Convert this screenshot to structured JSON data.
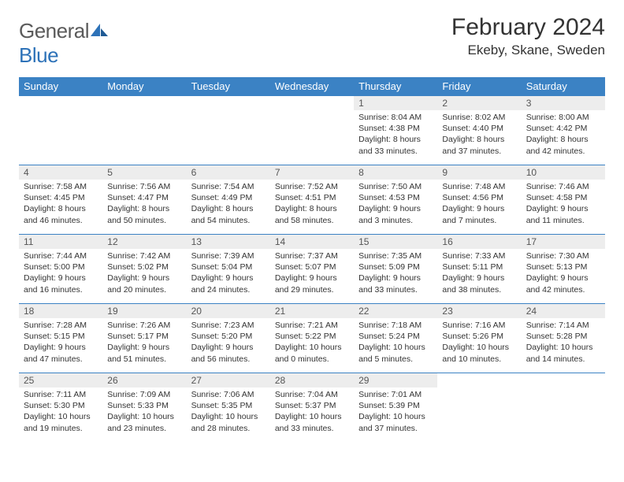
{
  "brand": {
    "name1": "General",
    "name2": "Blue"
  },
  "title": "February 2024",
  "location": "Ekeby, Skane, Sweden",
  "colors": {
    "header_bg": "#3b82c4",
    "header_text": "#ffffff",
    "daynum_bg": "#ededed",
    "row_border": "#3b82c4",
    "logo_gray": "#5a5a5a",
    "logo_blue": "#2d72b8"
  },
  "weekdays": [
    "Sunday",
    "Monday",
    "Tuesday",
    "Wednesday",
    "Thursday",
    "Friday",
    "Saturday"
  ],
  "weeks": [
    [
      null,
      null,
      null,
      null,
      {
        "n": "1",
        "sr": "8:04 AM",
        "ss": "4:38 PM",
        "dl": "8 hours and 33 minutes."
      },
      {
        "n": "2",
        "sr": "8:02 AM",
        "ss": "4:40 PM",
        "dl": "8 hours and 37 minutes."
      },
      {
        "n": "3",
        "sr": "8:00 AM",
        "ss": "4:42 PM",
        "dl": "8 hours and 42 minutes."
      }
    ],
    [
      {
        "n": "4",
        "sr": "7:58 AM",
        "ss": "4:45 PM",
        "dl": "8 hours and 46 minutes."
      },
      {
        "n": "5",
        "sr": "7:56 AM",
        "ss": "4:47 PM",
        "dl": "8 hours and 50 minutes."
      },
      {
        "n": "6",
        "sr": "7:54 AM",
        "ss": "4:49 PM",
        "dl": "8 hours and 54 minutes."
      },
      {
        "n": "7",
        "sr": "7:52 AM",
        "ss": "4:51 PM",
        "dl": "8 hours and 58 minutes."
      },
      {
        "n": "8",
        "sr": "7:50 AM",
        "ss": "4:53 PM",
        "dl": "9 hours and 3 minutes."
      },
      {
        "n": "9",
        "sr": "7:48 AM",
        "ss": "4:56 PM",
        "dl": "9 hours and 7 minutes."
      },
      {
        "n": "10",
        "sr": "7:46 AM",
        "ss": "4:58 PM",
        "dl": "9 hours and 11 minutes."
      }
    ],
    [
      {
        "n": "11",
        "sr": "7:44 AM",
        "ss": "5:00 PM",
        "dl": "9 hours and 16 minutes."
      },
      {
        "n": "12",
        "sr": "7:42 AM",
        "ss": "5:02 PM",
        "dl": "9 hours and 20 minutes."
      },
      {
        "n": "13",
        "sr": "7:39 AM",
        "ss": "5:04 PM",
        "dl": "9 hours and 24 minutes."
      },
      {
        "n": "14",
        "sr": "7:37 AM",
        "ss": "5:07 PM",
        "dl": "9 hours and 29 minutes."
      },
      {
        "n": "15",
        "sr": "7:35 AM",
        "ss": "5:09 PM",
        "dl": "9 hours and 33 minutes."
      },
      {
        "n": "16",
        "sr": "7:33 AM",
        "ss": "5:11 PM",
        "dl": "9 hours and 38 minutes."
      },
      {
        "n": "17",
        "sr": "7:30 AM",
        "ss": "5:13 PM",
        "dl": "9 hours and 42 minutes."
      }
    ],
    [
      {
        "n": "18",
        "sr": "7:28 AM",
        "ss": "5:15 PM",
        "dl": "9 hours and 47 minutes."
      },
      {
        "n": "19",
        "sr": "7:26 AM",
        "ss": "5:17 PM",
        "dl": "9 hours and 51 minutes."
      },
      {
        "n": "20",
        "sr": "7:23 AM",
        "ss": "5:20 PM",
        "dl": "9 hours and 56 minutes."
      },
      {
        "n": "21",
        "sr": "7:21 AM",
        "ss": "5:22 PM",
        "dl": "10 hours and 0 minutes."
      },
      {
        "n": "22",
        "sr": "7:18 AM",
        "ss": "5:24 PM",
        "dl": "10 hours and 5 minutes."
      },
      {
        "n": "23",
        "sr": "7:16 AM",
        "ss": "5:26 PM",
        "dl": "10 hours and 10 minutes."
      },
      {
        "n": "24",
        "sr": "7:14 AM",
        "ss": "5:28 PM",
        "dl": "10 hours and 14 minutes."
      }
    ],
    [
      {
        "n": "25",
        "sr": "7:11 AM",
        "ss": "5:30 PM",
        "dl": "10 hours and 19 minutes."
      },
      {
        "n": "26",
        "sr": "7:09 AM",
        "ss": "5:33 PM",
        "dl": "10 hours and 23 minutes."
      },
      {
        "n": "27",
        "sr": "7:06 AM",
        "ss": "5:35 PM",
        "dl": "10 hours and 28 minutes."
      },
      {
        "n": "28",
        "sr": "7:04 AM",
        "ss": "5:37 PM",
        "dl": "10 hours and 33 minutes."
      },
      {
        "n": "29",
        "sr": "7:01 AM",
        "ss": "5:39 PM",
        "dl": "10 hours and 37 minutes."
      },
      null,
      null
    ]
  ],
  "labels": {
    "sunrise": "Sunrise:",
    "sunset": "Sunset:",
    "daylight": "Daylight:"
  }
}
